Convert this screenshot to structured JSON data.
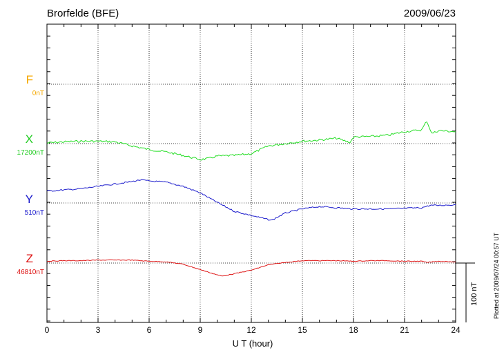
{
  "header": {
    "station": "Brorfelde (BFE)",
    "date": "2009/06/23"
  },
  "footer": {
    "plotted": "Plotted at 2009/07/24 00:57 UT"
  },
  "colors": {
    "F": "#f5a800",
    "X": "#22dd22",
    "Y": "#1a1acc",
    "Z": "#dd1111"
  },
  "chart_data": {
    "type": "line",
    "title": "Brorfelde (BFE)",
    "xlabel": "U T (hour)",
    "xlim": [
      0,
      24
    ],
    "x_ticks": [
      "0",
      "3",
      "6",
      "9",
      "12",
      "15",
      "18",
      "21",
      "24"
    ],
    "scale_bar": "100 nT",
    "grid": true,
    "components": [
      {
        "name": "F",
        "baseline_label": "0nT"
      },
      {
        "name": "X",
        "baseline_label": "17200nT"
      },
      {
        "name": "Y",
        "baseline_label": "510nT"
      },
      {
        "name": "Z",
        "baseline_label": "46810nT"
      }
    ],
    "series": [
      {
        "name": "X",
        "unit": "nT",
        "x": [
          0,
          1,
          2,
          3,
          4,
          5,
          6,
          7,
          8,
          9,
          9.5,
          10,
          11,
          12,
          13,
          14,
          15,
          16,
          17,
          17.8,
          18,
          19,
          20,
          21,
          22,
          22.3,
          22.6,
          23,
          24
        ],
        "y": [
          17201,
          17203,
          17204,
          17204,
          17203,
          17196,
          17190,
          17186,
          17180,
          17173,
          17175,
          17179,
          17180,
          17183,
          17196,
          17200,
          17204,
          17206,
          17209,
          17202,
          17211,
          17212,
          17214,
          17220,
          17223,
          17238,
          17217,
          17222,
          17220
        ]
      },
      {
        "name": "Y",
        "unit": "nT",
        "x": [
          0,
          1,
          2,
          3,
          4,
          5,
          5.5,
          6,
          7,
          8,
          9,
          10,
          11,
          12,
          13,
          13.2,
          14,
          15,
          16,
          17,
          18,
          19,
          20,
          21,
          22,
          22.5,
          23,
          24
        ],
        "y": [
          530,
          532,
          534,
          538,
          542,
          546,
          549,
          547,
          545,
          538,
          527,
          511,
          496,
          489,
          482,
          481,
          493,
          500,
          504,
          502,
          500,
          500,
          500,
          501,
          502,
          506,
          506,
          507
        ]
      },
      {
        "name": "Z",
        "unit": "nT",
        "x": [
          0,
          1,
          2,
          3,
          4,
          5,
          6,
          7,
          8,
          9,
          10,
          10.3,
          11,
          12,
          13,
          14,
          15,
          16,
          17,
          18,
          19,
          20,
          21,
          22,
          22.3,
          23,
          24
        ],
        "y": [
          46813,
          46814,
          46814,
          46815,
          46815,
          46815,
          46813,
          46812,
          46808,
          46799,
          46790,
          46788,
          46792,
          46798,
          46807,
          46811,
          46814,
          46814,
          46814,
          46813,
          46814,
          46814,
          46813,
          46813,
          46811,
          46813,
          46812
        ]
      }
    ]
  }
}
